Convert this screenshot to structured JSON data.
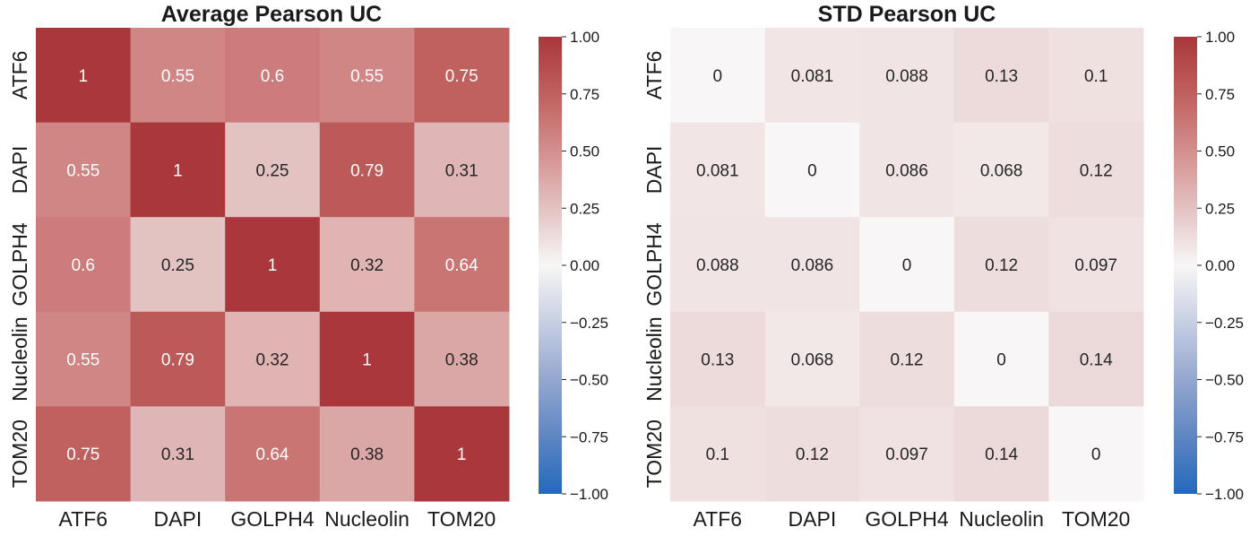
{
  "chart_data": [
    {
      "type": "heatmap",
      "title": "Average Pearson UC",
      "rows": [
        "ATF6",
        "DAPI",
        "GOLPH4",
        "Nucleolin",
        "TOM20"
      ],
      "cols": [
        "ATF6",
        "DAPI",
        "GOLPH4",
        "Nucleolin",
        "TOM20"
      ],
      "values": [
        [
          1,
          0.55,
          0.6,
          0.55,
          0.75
        ],
        [
          0.55,
          1,
          0.25,
          0.79,
          0.31
        ],
        [
          0.6,
          0.25,
          1,
          0.32,
          0.64
        ],
        [
          0.55,
          0.79,
          0.32,
          1,
          0.38
        ],
        [
          0.75,
          0.31,
          0.64,
          0.38,
          1
        ]
      ],
      "colorbar": {
        "range": [
          -1.0,
          1.0
        ],
        "ticks": [
          "1.00",
          "0.75",
          "0.50",
          "0.25",
          "0.00",
          "−0.25",
          "−0.50",
          "−0.75",
          "−1.00"
        ],
        "colormap": "vlag",
        "low_color": "#2166ac",
        "mid_color": "#ffffff",
        "high_color": "#b2182b"
      }
    },
    {
      "type": "heatmap",
      "title": "STD Pearson UC",
      "rows": [
        "ATF6",
        "DAPI",
        "GOLPH4",
        "Nucleolin",
        "TOM20"
      ],
      "cols": [
        "ATF6",
        "DAPI",
        "GOLPH4",
        "Nucleolin",
        "TOM20"
      ],
      "values": [
        [
          0,
          0.081,
          0.088,
          0.13,
          0.1
        ],
        [
          0.081,
          0,
          0.086,
          0.068,
          0.12
        ],
        [
          0.088,
          0.086,
          0,
          0.12,
          0.097
        ],
        [
          0.13,
          0.068,
          0.12,
          0,
          0.14
        ],
        [
          0.1,
          0.12,
          0.097,
          0.14,
          0
        ]
      ],
      "colorbar": {
        "range": [
          -1.0,
          1.0
        ],
        "ticks": [
          "1.00",
          "0.75",
          "0.50",
          "0.25",
          "0.00",
          "−0.25",
          "−0.50",
          "−0.75",
          "−1.00"
        ],
        "colormap": "vlag",
        "low_color": "#2166ac",
        "mid_color": "#ffffff",
        "high_color": "#b2182b"
      }
    }
  ]
}
